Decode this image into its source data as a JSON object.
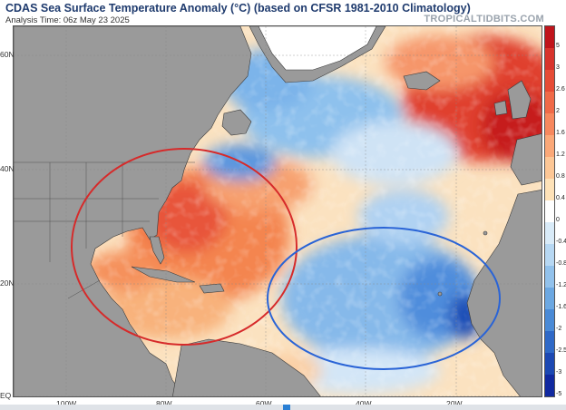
{
  "header": {
    "title": "CDAS Sea Surface Temperature Anomaly (°C) (based on CFSR 1981-2010 Climatology)",
    "subtitle": "Analysis Time: 06z May 23 2025",
    "brand": "TROPICALTIDBITS.COM"
  },
  "axes": {
    "lat_labels": [
      "60N",
      "40N",
      "20N",
      "EQ"
    ],
    "lon_labels": [
      "100W",
      "80W",
      "60W",
      "40W",
      "20W"
    ]
  },
  "colorbar": {
    "ticks": [
      "5",
      "3",
      "2.6",
      "2",
      "1.6",
      "1.2",
      "0.8",
      "0.4",
      "0",
      "-0.4",
      "-0.8",
      "-1.2",
      "-1.6",
      "-2",
      "-2.5",
      "-3",
      "-5"
    ],
    "colors": [
      "#c0141b",
      "#d8332c",
      "#e64b35",
      "#f06a48",
      "#f7885e",
      "#fba878",
      "#fdc796",
      "#fee2b8",
      "#ffffff",
      "#d9ebf8",
      "#b7d8f3",
      "#92c2ec",
      "#6ca8e2",
      "#4a8ad6",
      "#2f69c7",
      "#1c48b3",
      "#1129a0"
    ]
  },
  "annotations": [
    {
      "name": "red-circle",
      "color": "#d62a2a"
    },
    {
      "name": "blue-circle",
      "color": "#2a64d6"
    }
  ]
}
